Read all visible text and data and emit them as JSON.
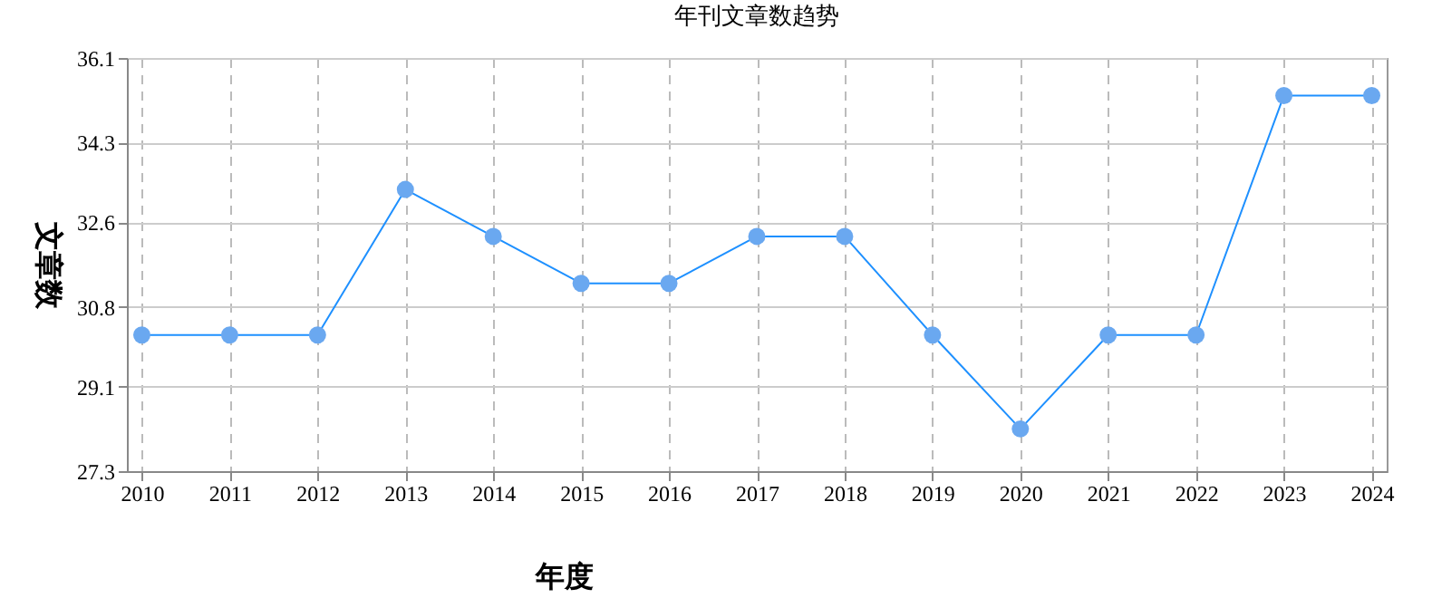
{
  "chart_data": {
    "type": "line",
    "title": "年刊文章数趋势",
    "xlabel": "年度",
    "ylabel": "文章数",
    "categories": [
      "2010",
      "2011",
      "2012",
      "2013",
      "2014",
      "2015",
      "2016",
      "2017",
      "2018",
      "2019",
      "2020",
      "2021",
      "2022",
      "2023",
      "2024"
    ],
    "series": [
      {
        "color": "#1e90ff",
        "values": [
          30.2,
          30.2,
          30.2,
          33.3,
          32.3,
          31.3,
          31.3,
          32.3,
          32.3,
          30.2,
          28.2,
          30.2,
          30.2,
          35.3,
          35.3
        ]
      }
    ],
    "ylim": [
      27.3,
      36.1
    ],
    "yticks": [
      27.3,
      29.1,
      30.8,
      32.6,
      34.3,
      36.1
    ],
    "grid": true,
    "marker": "circle",
    "line_style": "solid"
  }
}
